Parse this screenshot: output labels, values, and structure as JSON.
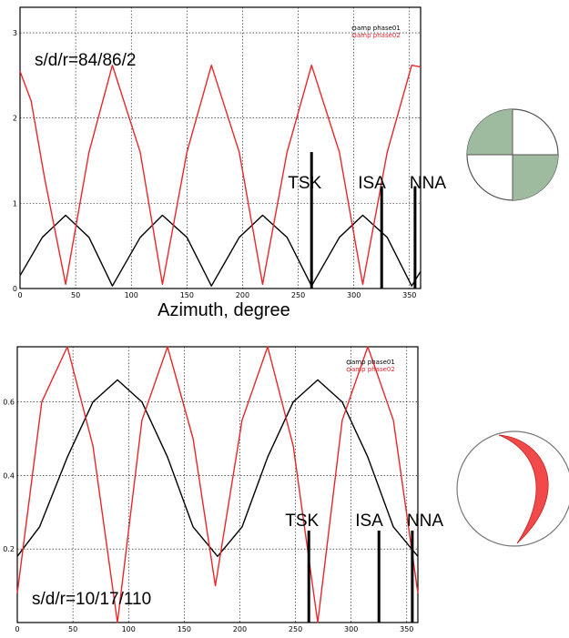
{
  "colors": {
    "phase01": "#000000",
    "phase02": "#e8272b",
    "beachball1_fill": "#9fbb9f",
    "beachball2_fill": "#f24a4a"
  },
  "chart_data": [
    {
      "type": "line",
      "annotation": "s/d/r=84/86/2",
      "xlabel": "Azimuth, degree",
      "xlim": [
        0,
        360
      ],
      "ylim": [
        0,
        3.3
      ],
      "xticks": [
        0,
        50,
        100,
        150,
        200,
        250,
        300,
        350
      ],
      "yticks": [
        0,
        1,
        2,
        3
      ],
      "grid": true,
      "legend": {
        "placement": "top-right",
        "entries": [
          "amp phase01",
          "amp phase02"
        ]
      },
      "series": [
        {
          "name": "amp phase01",
          "color": "#000000",
          "x": [
            0,
            20,
            41,
            62,
            83,
            108,
            128,
            150,
            172,
            197,
            218,
            240,
            262,
            287,
            308,
            330,
            352,
            360
          ],
          "y": [
            0.15,
            0.6,
            0.86,
            0.6,
            0.03,
            0.6,
            0.86,
            0.6,
            0.03,
            0.6,
            0.86,
            0.6,
            0.03,
            0.6,
            0.86,
            0.6,
            0.03,
            0.2
          ]
        },
        {
          "name": "amp phase02",
          "color": "#e8272b",
          "x": [
            0,
            10,
            22,
            41,
            62,
            83,
            108,
            128,
            150,
            172,
            197,
            218,
            240,
            262,
            287,
            308,
            330,
            352,
            360
          ],
          "y": [
            2.55,
            2.2,
            1.3,
            0.05,
            1.6,
            2.62,
            1.6,
            0.05,
            1.6,
            2.62,
            1.6,
            0.05,
            1.6,
            2.62,
            1.6,
            0.05,
            1.6,
            2.62,
            2.6
          ]
        }
      ],
      "stations": [
        {
          "label": "TSK",
          "azimuth": 262,
          "height": 1.6
        },
        {
          "label": "ISA",
          "azimuth": 325,
          "height": 1.2
        },
        {
          "label": "NNA",
          "azimuth": 355,
          "height": 1.2
        }
      ]
    },
    {
      "type": "line",
      "annotation": "s/d/r=10/17/110",
      "xlabel": "",
      "xlim": [
        0,
        360
      ],
      "ylim": [
        0,
        0.75
      ],
      "xticks": [
        0,
        50,
        100,
        150,
        200,
        250,
        300,
        350
      ],
      "yticks": [
        0.2,
        0.4,
        0.6
      ],
      "grid": true,
      "legend": {
        "placement": "top-right",
        "entries": [
          "amp phase01",
          "amp phase02"
        ]
      },
      "series": [
        {
          "name": "amp phase01",
          "color": "#000000",
          "x": [
            0,
            20,
            45,
            68,
            90,
            112,
            135,
            158,
            180,
            202,
            225,
            248,
            270,
            292,
            315,
            338,
            360
          ],
          "y": [
            0.18,
            0.26,
            0.45,
            0.6,
            0.66,
            0.6,
            0.45,
            0.26,
            0.18,
            0.26,
            0.45,
            0.6,
            0.66,
            0.6,
            0.45,
            0.26,
            0.18
          ]
        },
        {
          "name": "amp phase02",
          "color": "#e8272b",
          "x": [
            0,
            22,
            45,
            68,
            90,
            112,
            135,
            158,
            178,
            202,
            225,
            248,
            270,
            292,
            315,
            338,
            360
          ],
          "y": [
            0.08,
            0.6,
            0.75,
            0.48,
            0.0,
            0.55,
            0.75,
            0.5,
            0.1,
            0.55,
            0.75,
            0.48,
            0.0,
            0.55,
            0.75,
            0.55,
            0.08
          ]
        }
      ],
      "stations": [
        {
          "label": "TSK",
          "azimuth": 262,
          "height": 0.25
        },
        {
          "label": "ISA",
          "azimuth": 325,
          "height": 0.25
        },
        {
          "label": "NNA",
          "azimuth": 355,
          "height": 0.25
        }
      ]
    }
  ]
}
